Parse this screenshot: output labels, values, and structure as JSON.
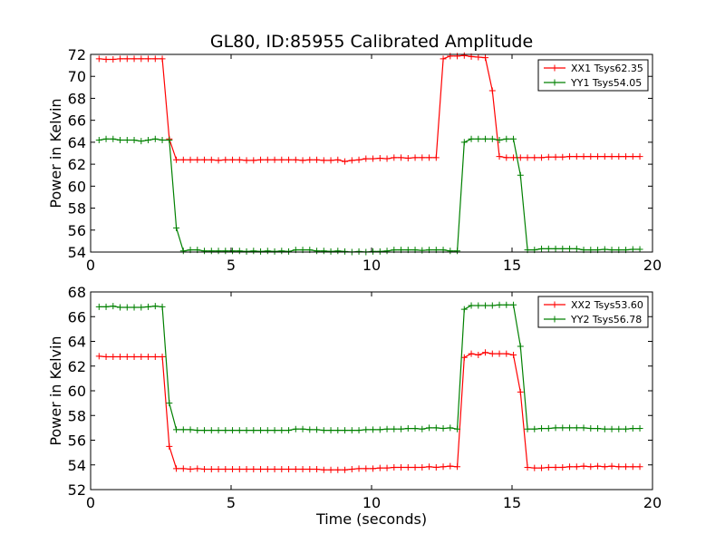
{
  "title": "GL80, ID:85955 Calibrated Amplitude",
  "chart_data": [
    {
      "type": "line",
      "xlabel": "",
      "ylabel": "Power in Kelvin",
      "xlim": [
        0,
        20
      ],
      "ylim": [
        54,
        72
      ],
      "xticks": [
        "0",
        "5",
        "10",
        "15",
        "20"
      ],
      "yticks": [
        "54",
        "56",
        "58",
        "60",
        "62",
        "64",
        "66",
        "68",
        "70",
        "72"
      ],
      "legend_position": "top-right",
      "x": [
        0.3,
        0.55,
        0.8,
        1.05,
        1.3,
        1.55,
        1.8,
        2.05,
        2.3,
        2.55,
        2.8,
        3.05,
        3.3,
        3.55,
        3.8,
        4.05,
        4.3,
        4.55,
        4.8,
        5.05,
        5.3,
        5.55,
        5.8,
        6.05,
        6.3,
        6.55,
        6.8,
        7.05,
        7.3,
        7.55,
        7.8,
        8.05,
        8.3,
        8.55,
        8.8,
        9.05,
        9.3,
        9.55,
        9.8,
        10.05,
        10.3,
        10.55,
        10.8,
        11.05,
        11.3,
        11.55,
        11.8,
        12.05,
        12.3,
        12.55,
        12.8,
        13.05,
        13.3,
        13.55,
        13.8,
        14.05,
        14.3,
        14.55,
        14.8,
        15.05,
        15.3,
        15.55,
        15.8,
        16.05,
        16.3,
        16.55,
        16.8,
        17.05,
        17.3,
        17.55,
        17.8,
        18.05,
        18.3,
        18.55,
        18.8,
        19.05,
        19.3,
        19.55
      ],
      "series": [
        {
          "name": "XX1 Tsys62.35",
          "color": "#ff0000",
          "values": [
            71.6,
            71.55,
            71.55,
            71.6,
            71.6,
            71.6,
            71.6,
            71.6,
            71.6,
            71.6,
            64.3,
            62.4,
            62.4,
            62.4,
            62.4,
            62.4,
            62.4,
            62.35,
            62.4,
            62.4,
            62.4,
            62.35,
            62.35,
            62.4,
            62.4,
            62.4,
            62.4,
            62.4,
            62.4,
            62.35,
            62.4,
            62.4,
            62.35,
            62.35,
            62.4,
            62.25,
            62.35,
            62.4,
            62.5,
            62.5,
            62.55,
            62.5,
            62.6,
            62.6,
            62.55,
            62.6,
            62.6,
            62.6,
            62.6,
            71.6,
            71.85,
            71.85,
            71.9,
            71.8,
            71.75,
            71.7,
            68.7,
            62.7,
            62.6,
            62.6,
            62.6,
            62.6,
            62.6,
            62.6,
            62.65,
            62.65,
            62.65,
            62.7,
            62.7,
            62.7,
            62.7,
            62.7,
            62.7,
            62.7,
            62.7,
            62.7,
            62.7,
            62.7
          ]
        },
        {
          "name": "YY1 Tsys54.05",
          "color": "#008000",
          "values": [
            64.2,
            64.3,
            64.3,
            64.2,
            64.2,
            64.2,
            64.1,
            64.2,
            64.3,
            64.2,
            64.2,
            56.2,
            54.1,
            54.2,
            54.2,
            54.1,
            54.1,
            54.1,
            54.1,
            54.1,
            54.1,
            54.05,
            54.1,
            54.05,
            54.1,
            54.05,
            54.1,
            54.05,
            54.2,
            54.2,
            54.2,
            54.1,
            54.1,
            54.05,
            54.1,
            54.05,
            54.0,
            54.05,
            54.0,
            54.05,
            54.05,
            54.1,
            54.2,
            54.2,
            54.2,
            54.2,
            54.15,
            54.2,
            54.2,
            54.2,
            54.1,
            54.1,
            64.0,
            64.3,
            64.3,
            64.3,
            64.3,
            64.2,
            64.3,
            64.3,
            61.0,
            54.2,
            54.2,
            54.3,
            54.3,
            54.3,
            54.3,
            54.3,
            54.3,
            54.2,
            54.2,
            54.2,
            54.25,
            54.2,
            54.2,
            54.2,
            54.25,
            54.25
          ]
        }
      ]
    },
    {
      "type": "line",
      "xlabel": "Time (seconds)",
      "ylabel": "Power in Kelvin",
      "xlim": [
        0,
        20
      ],
      "ylim": [
        52,
        68
      ],
      "xticks": [
        "0",
        "5",
        "10",
        "15",
        "20"
      ],
      "yticks": [
        "52",
        "54",
        "56",
        "58",
        "60",
        "62",
        "64",
        "66",
        "68"
      ],
      "legend_position": "top-right",
      "x": [
        0.3,
        0.55,
        0.8,
        1.05,
        1.3,
        1.55,
        1.8,
        2.05,
        2.3,
        2.55,
        2.8,
        3.05,
        3.3,
        3.55,
        3.8,
        4.05,
        4.3,
        4.55,
        4.8,
        5.05,
        5.3,
        5.55,
        5.8,
        6.05,
        6.3,
        6.55,
        6.8,
        7.05,
        7.3,
        7.55,
        7.8,
        8.05,
        8.3,
        8.55,
        8.8,
        9.05,
        9.3,
        9.55,
        9.8,
        10.05,
        10.3,
        10.55,
        10.8,
        11.05,
        11.3,
        11.55,
        11.8,
        12.05,
        12.3,
        12.55,
        12.8,
        13.05,
        13.3,
        13.55,
        13.8,
        14.05,
        14.3,
        14.55,
        14.8,
        15.05,
        15.3,
        15.55,
        15.8,
        16.05,
        16.3,
        16.55,
        16.8,
        17.05,
        17.3,
        17.55,
        17.8,
        18.05,
        18.3,
        18.55,
        18.8,
        19.05,
        19.3,
        19.55
      ],
      "series": [
        {
          "name": "XX2 Tsys53.60",
          "color": "#ff0000",
          "values": [
            62.8,
            62.75,
            62.75,
            62.75,
            62.75,
            62.75,
            62.75,
            62.75,
            62.75,
            62.75,
            55.5,
            53.7,
            53.7,
            53.65,
            53.7,
            53.65,
            53.65,
            53.65,
            53.65,
            53.65,
            53.65,
            53.65,
            53.65,
            53.65,
            53.65,
            53.65,
            53.65,
            53.65,
            53.65,
            53.65,
            53.65,
            53.65,
            53.6,
            53.6,
            53.6,
            53.6,
            53.65,
            53.7,
            53.7,
            53.7,
            53.75,
            53.75,
            53.8,
            53.8,
            53.8,
            53.8,
            53.8,
            53.85,
            53.8,
            53.85,
            53.9,
            53.85,
            62.7,
            63.0,
            62.9,
            63.1,
            63.0,
            63.0,
            63.0,
            62.9,
            59.9,
            53.8,
            53.75,
            53.75,
            53.8,
            53.8,
            53.8,
            53.85,
            53.85,
            53.9,
            53.85,
            53.9,
            53.85,
            53.9,
            53.85,
            53.85,
            53.85,
            53.85
          ]
        },
        {
          "name": "YY2 Tsys56.78",
          "color": "#008000",
          "values": [
            66.8,
            66.8,
            66.85,
            66.75,
            66.75,
            66.75,
            66.75,
            66.8,
            66.85,
            66.8,
            59.0,
            56.85,
            56.85,
            56.85,
            56.8,
            56.8,
            56.8,
            56.8,
            56.8,
            56.8,
            56.8,
            56.8,
            56.8,
            56.8,
            56.8,
            56.8,
            56.8,
            56.8,
            56.9,
            56.9,
            56.85,
            56.85,
            56.8,
            56.8,
            56.8,
            56.8,
            56.8,
            56.8,
            56.85,
            56.85,
            56.85,
            56.9,
            56.9,
            56.9,
            56.95,
            56.95,
            56.9,
            57.0,
            57.0,
            56.95,
            57.0,
            56.9,
            66.6,
            66.9,
            66.9,
            66.9,
            66.9,
            66.95,
            66.95,
            66.95,
            63.6,
            56.9,
            56.9,
            56.95,
            56.95,
            57.0,
            57.0,
            57.0,
            57.0,
            57.0,
            56.95,
            56.95,
            56.9,
            56.9,
            56.9,
            56.9,
            56.95,
            56.95
          ]
        }
      ]
    }
  ]
}
